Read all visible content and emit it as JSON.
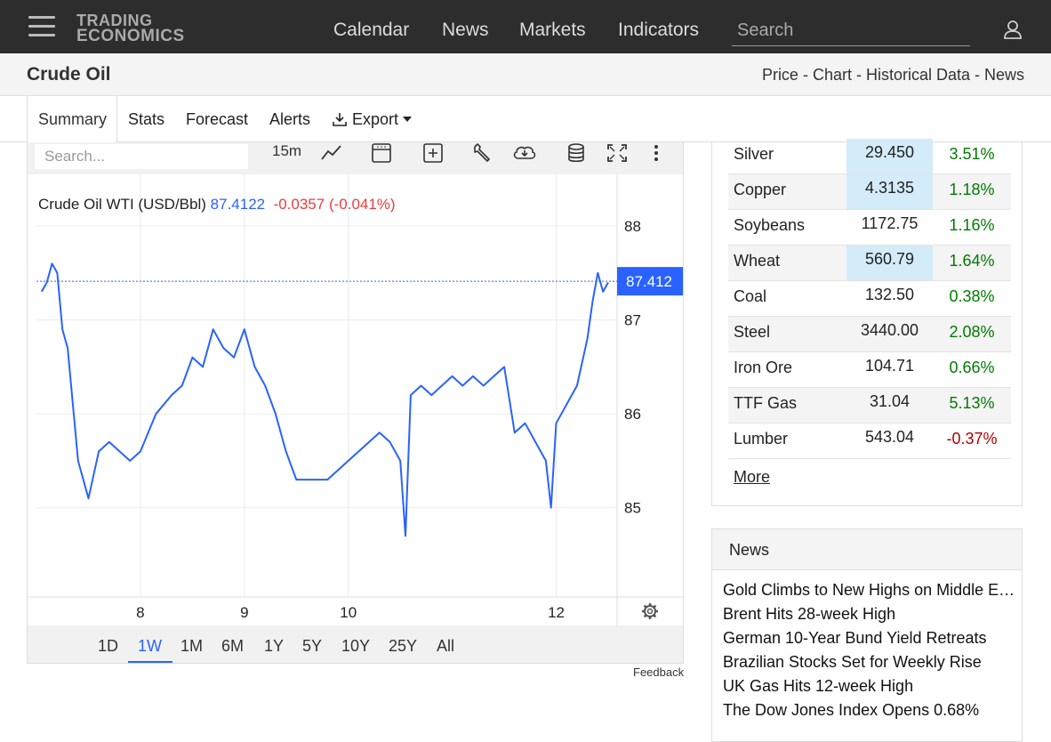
{
  "nav": {
    "logo_line1": "TRADING",
    "logo_line2": "ECONOMICS",
    "items": [
      "Calendar",
      "News",
      "Markets",
      "Indicators"
    ],
    "search_placeholder": "Search"
  },
  "header": {
    "title": "Crude Oil",
    "breadcrumb": "Price - Chart - Historical Data - News"
  },
  "tabs": [
    "Summary",
    "Stats",
    "Forecast",
    "Alerts",
    "Export"
  ],
  "active_tab": "Summary",
  "chart_toolbar": {
    "search_placeholder": "Search...",
    "interval": "15m",
    "icons": [
      "line-chart-icon",
      "calendar-icon",
      "add-comparison-icon",
      "wrench-icon",
      "download-cloud-icon",
      "database-icon",
      "fullscreen-icon",
      "more-vertical-icon"
    ]
  },
  "chart_legend": {
    "symbol": "Crude Oil WTI (USD/Bbl)",
    "last": "87.4122",
    "change": "-0.0357 (-0.041%)"
  },
  "chart_data": {
    "type": "line",
    "title": "",
    "xlabel": "",
    "ylabel": "",
    "series": [
      {
        "color": "#2962ff",
        "x": [
          "7.05",
          "7.1",
          "7.15",
          "7.2",
          "7.25",
          "7.3",
          "7.4",
          "7.5",
          "7.6",
          "7.7",
          "7.8",
          "7.9",
          "8.0",
          "8.15",
          "8.3",
          "8.4",
          "8.5",
          "8.6",
          "8.7",
          "8.8",
          "8.9",
          "9.0",
          "9.1",
          "9.2",
          "9.3",
          "9.4",
          "9.5",
          "9.6",
          "9.7",
          "9.8",
          "9.9",
          "10.0",
          "10.1",
          "10.2",
          "10.3",
          "10.4",
          "10.5",
          "10.55",
          "10.6",
          "10.7",
          "10.8",
          "10.9",
          "11.0",
          "11.1",
          "11.2",
          "11.3",
          "11.4",
          "11.5",
          "11.6",
          "11.7",
          "11.8",
          "11.9",
          "11.95",
          "12.0",
          "12.1",
          "12.2",
          "12.3",
          "12.35",
          "12.4",
          "12.45",
          "12.5"
        ],
        "values": [
          87.3,
          87.4,
          87.6,
          87.5,
          86.9,
          86.7,
          85.5,
          85.1,
          85.6,
          85.7,
          85.6,
          85.5,
          85.6,
          86.0,
          86.2,
          86.3,
          86.6,
          86.5,
          86.9,
          86.7,
          86.6,
          86.9,
          86.5,
          86.3,
          86.0,
          85.6,
          85.3,
          85.3,
          85.3,
          85.3,
          85.4,
          85.5,
          85.6,
          85.7,
          85.8,
          85.7,
          85.5,
          84.7,
          86.2,
          86.3,
          86.2,
          86.3,
          86.4,
          86.3,
          86.4,
          86.3,
          86.4,
          86.5,
          85.8,
          85.9,
          85.7,
          85.5,
          85.0,
          85.9,
          86.1,
          86.3,
          86.8,
          87.2,
          87.5,
          87.3,
          87.4
        ]
      }
    ],
    "ylim": [
      84.05,
      88.55
    ],
    "y_ticks": [
      "88",
      "87",
      "86",
      "85"
    ],
    "x_ticks": [
      {
        "label": "8",
        "x": 8
      },
      {
        "label": "9",
        "x": 9
      },
      {
        "label": "10",
        "x": 10
      },
      {
        "label": "12",
        "x": 12
      }
    ],
    "xlim": [
      7.0,
      12.5
    ],
    "last_value_label": "87.412",
    "last_value": 87.412,
    "grid": true
  },
  "ranges": [
    "1D",
    "1W",
    "1M",
    "6M",
    "1Y",
    "5Y",
    "10Y",
    "25Y",
    "All"
  ],
  "active_range": "1W",
  "feedback": "Feedback",
  "commodities": [
    {
      "name": "Silver",
      "price": "29.450",
      "pct": "3.51%"
    },
    {
      "name": "Copper",
      "price": "4.3135",
      "pct": "1.18%"
    },
    {
      "name": "Soybeans",
      "price": "1172.75",
      "pct": "1.16%"
    },
    {
      "name": "Wheat",
      "price": "560.79",
      "pct": "1.64%"
    },
    {
      "name": "Coal",
      "price": "132.50",
      "pct": "0.38%"
    },
    {
      "name": "Steel",
      "price": "3440.00",
      "pct": "2.08%"
    },
    {
      "name": "Iron Ore",
      "price": "104.71",
      "pct": "0.66%"
    },
    {
      "name": "TTF Gas",
      "price": "31.04",
      "pct": "5.13%"
    },
    {
      "name": "Lumber",
      "price": "543.04",
      "pct": "-0.37%"
    }
  ],
  "more_link": "More",
  "news": {
    "title": "News",
    "items": [
      "Gold Climbs to New Highs on Middle East Tensions",
      "Brent Hits 28-week High",
      "German 10-Year Bund Yield Retreats",
      "Brazilian Stocks Set for Weekly Rise",
      "UK Gas Hits 12-week High",
      "The Dow Jones Index Opens 0.68%"
    ]
  }
}
